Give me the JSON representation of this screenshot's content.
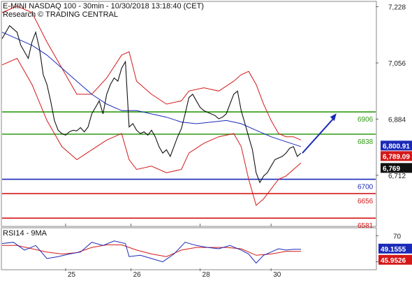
{
  "header": {
    "line1": "E-MINI NASDAQ 100 - 30min - 10/30/2018 13:18:40 (CET)",
    "line2": "Research © TRADING CENTRAL"
  },
  "chart_data": [
    {
      "type": "line",
      "name": "price",
      "y_ticks": [
        7228,
        7056,
        6884,
        6712
      ],
      "y_range": [
        6560,
        7240
      ],
      "x_ticks": [
        "25",
        "26",
        "28",
        "30"
      ],
      "x_range": [
        0,
        100
      ],
      "x_tick_positions": [
        17,
        34.5,
        53,
        72
      ],
      "levels": [
        {
          "label": "6906",
          "value": 6906,
          "color": "#2e9a12"
        },
        {
          "label": "6838",
          "value": 6838,
          "color": "#2e9a12"
        },
        {
          "label": "6700",
          "value": 6700,
          "color": "#1a2ab8"
        },
        {
          "label": "6656",
          "value": 6656,
          "color": "#d41818"
        },
        {
          "label": "6581",
          "value": 6581,
          "color": "#d41818"
        }
      ],
      "price_tags": [
        {
          "label": "6,800.91",
          "value": 6800.91,
          "bg": "#1a2ab8"
        },
        {
          "label": "6,789.09",
          "value": 6789.09,
          "bg": "#d41818"
        },
        {
          "label": "6,769",
          "value": 6769,
          "bg": "#111111"
        }
      ],
      "close": [
        [
          0,
          7130
        ],
        [
          2,
          7170
        ],
        [
          3,
          7160
        ],
        [
          4,
          7150
        ],
        [
          5,
          7110
        ],
        [
          6,
          7090
        ],
        [
          7,
          7070
        ],
        [
          8,
          7120
        ],
        [
          9,
          7150
        ],
        [
          10,
          7100
        ],
        [
          11,
          7020
        ],
        [
          12,
          6990
        ],
        [
          13,
          6940
        ],
        [
          14,
          6880
        ],
        [
          15,
          6850
        ],
        [
          16,
          6840
        ],
        [
          17,
          6835
        ],
        [
          18,
          6845
        ],
        [
          19,
          6850
        ],
        [
          20,
          6848
        ],
        [
          21,
          6858
        ],
        [
          22,
          6845
        ],
        [
          23,
          6860
        ],
        [
          24,
          6900
        ],
        [
          25,
          6920
        ],
        [
          26,
          6940
        ],
        [
          27,
          6900
        ],
        [
          28,
          6960
        ],
        [
          29,
          6990
        ],
        [
          30,
          7010
        ],
        [
          31,
          7000
        ],
        [
          32,
          7040
        ],
        [
          33,
          7060
        ],
        [
          34,
          6860
        ],
        [
          35,
          6870
        ],
        [
          36,
          6850
        ],
        [
          37,
          6840
        ],
        [
          38,
          6845
        ],
        [
          39,
          6835
        ],
        [
          40,
          6850
        ],
        [
          41,
          6830
        ],
        [
          42,
          6800
        ],
        [
          43,
          6780
        ],
        [
          44,
          6790
        ],
        [
          45,
          6770
        ],
        [
          46,
          6800
        ],
        [
          47,
          6830
        ],
        [
          48,
          6855
        ],
        [
          49,
          6900
        ],
        [
          50,
          6950
        ],
        [
          51,
          6960
        ],
        [
          52,
          6940
        ],
        [
          53,
          6920
        ],
        [
          54,
          6910
        ],
        [
          55,
          6905
        ],
        [
          56,
          6900
        ],
        [
          57,
          6895
        ],
        [
          58,
          6885
        ],
        [
          59,
          6890
        ],
        [
          60,
          6900
        ],
        [
          61,
          6930
        ],
        [
          62,
          6960
        ],
        [
          63,
          6970
        ],
        [
          64,
          6910
        ],
        [
          65,
          6870
        ],
        [
          66,
          6830
        ],
        [
          67,
          6790
        ],
        [
          68,
          6720
        ],
        [
          69,
          6690
        ],
        [
          70,
          6710
        ],
        [
          71,
          6720
        ],
        [
          72,
          6740
        ],
        [
          73,
          6760
        ],
        [
          74,
          6765
        ],
        [
          75,
          6770
        ],
        [
          76,
          6780
        ],
        [
          77,
          6795
        ],
        [
          78,
          6800
        ],
        [
          79,
          6770
        ],
        [
          80,
          6780
        ]
      ],
      "bollinger_upper": [
        [
          0,
          7210
        ],
        [
          4,
          7230
        ],
        [
          8,
          7210
        ],
        [
          12,
          7120
        ],
        [
          16,
          7040
        ],
        [
          20,
          6960
        ],
        [
          24,
          6960
        ],
        [
          28,
          7010
        ],
        [
          32,
          7080
        ],
        [
          34,
          7090
        ],
        [
          36,
          7000
        ],
        [
          40,
          6960
        ],
        [
          44,
          6930
        ],
        [
          48,
          6940
        ],
        [
          50,
          6970
        ],
        [
          54,
          6980
        ],
        [
          58,
          6970
        ],
        [
          62,
          7000
        ],
        [
          64,
          7020
        ],
        [
          66,
          7030
        ],
        [
          68,
          6990
        ],
        [
          70,
          6930
        ],
        [
          72,
          6880
        ],
        [
          74,
          6840
        ],
        [
          76,
          6830
        ],
        [
          78,
          6830
        ],
        [
          80,
          6820
        ]
      ],
      "bollinger_lower": [
        [
          0,
          7050
        ],
        [
          4,
          7070
        ],
        [
          8,
          6990
        ],
        [
          12,
          6880
        ],
        [
          16,
          6800
        ],
        [
          20,
          6760
        ],
        [
          24,
          6790
        ],
        [
          28,
          6820
        ],
        [
          32,
          6840
        ],
        [
          34,
          6760
        ],
        [
          36,
          6730
        ],
        [
          40,
          6740
        ],
        [
          44,
          6720
        ],
        [
          48,
          6730
        ],
        [
          50,
          6780
        ],
        [
          54,
          6810
        ],
        [
          58,
          6830
        ],
        [
          62,
          6840
        ],
        [
          64,
          6800
        ],
        [
          66,
          6700
        ],
        [
          68,
          6620
        ],
        [
          70,
          6640
        ],
        [
          72,
          6670
        ],
        [
          74,
          6700
        ],
        [
          76,
          6710
        ],
        [
          78,
          6730
        ],
        [
          80,
          6750
        ]
      ],
      "moving_average": [
        [
          0,
          7150
        ],
        [
          4,
          7130
        ],
        [
          8,
          7110
        ],
        [
          12,
          7080
        ],
        [
          16,
          7040
        ],
        [
          20,
          7000
        ],
        [
          24,
          6960
        ],
        [
          28,
          6930
        ],
        [
          32,
          6910
        ],
        [
          36,
          6910
        ],
        [
          40,
          6900
        ],
        [
          44,
          6890
        ],
        [
          48,
          6875
        ],
        [
          52,
          6870
        ],
        [
          56,
          6875
        ],
        [
          60,
          6880
        ],
        [
          64,
          6870
        ],
        [
          68,
          6850
        ],
        [
          72,
          6830
        ],
        [
          76,
          6815
        ],
        [
          80,
          6800
        ]
      ]
    },
    {
      "type": "line",
      "name": "RSI14 - 9MA",
      "title": "RSI14 - 9MA",
      "y_ticks": [
        70,
        30
      ],
      "y_range": [
        20,
        80
      ],
      "tags": [
        {
          "label": "49.1555",
          "value": 49.1555,
          "bg": "#1a2ab8"
        },
        {
          "label": "45.9526",
          "value": 45.9526,
          "bg": "#d41818"
        }
      ],
      "rsi": [
        [
          0,
          58
        ],
        [
          3,
          60
        ],
        [
          6,
          48
        ],
        [
          9,
          55
        ],
        [
          12,
          35
        ],
        [
          15,
          38
        ],
        [
          18,
          42
        ],
        [
          21,
          45
        ],
        [
          24,
          60
        ],
        [
          27,
          55
        ],
        [
          30,
          62
        ],
        [
          33,
          58
        ],
        [
          34,
          38
        ],
        [
          37,
          40
        ],
        [
          40,
          35
        ],
        [
          43,
          30
        ],
        [
          46,
          42
        ],
        [
          49,
          60
        ],
        [
          52,
          55
        ],
        [
          55,
          52
        ],
        [
          58,
          50
        ],
        [
          61,
          55
        ],
        [
          64,
          48
        ],
        [
          66,
          42
        ],
        [
          68,
          28
        ],
        [
          70,
          40
        ],
        [
          72,
          45
        ],
        [
          74,
          50
        ],
        [
          76,
          48
        ],
        [
          78,
          49.2
        ],
        [
          80,
          49.2
        ]
      ],
      "rsi_ma": [
        [
          0,
          55
        ],
        [
          4,
          55
        ],
        [
          8,
          50
        ],
        [
          12,
          45
        ],
        [
          16,
          42
        ],
        [
          20,
          44
        ],
        [
          24,
          52
        ],
        [
          28,
          56
        ],
        [
          32,
          56
        ],
        [
          36,
          48
        ],
        [
          40,
          42
        ],
        [
          44,
          38
        ],
        [
          48,
          48
        ],
        [
          52,
          52
        ],
        [
          56,
          52
        ],
        [
          60,
          52
        ],
        [
          64,
          50
        ],
        [
          68,
          40
        ],
        [
          72,
          42
        ],
        [
          76,
          46
        ],
        [
          80,
          46
        ]
      ]
    }
  ],
  "colors": {
    "price": "#111111",
    "bollinger": "#d41818",
    "moving_average": "#1a2ab8",
    "rsi": "#1a2ab8",
    "rsi_ma": "#d41818",
    "arrow": "#1a2ab8"
  }
}
